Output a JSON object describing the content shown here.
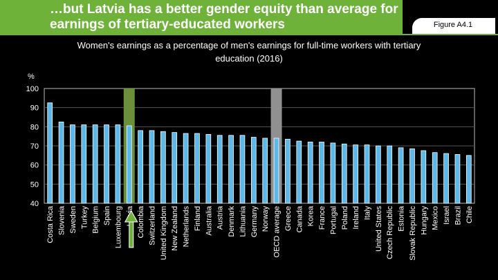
{
  "header": {
    "title": "…but Latvia has a better gender equity than average for earnings of tertiary-educated workers",
    "figure_label": "Figure A4.1"
  },
  "colors": {
    "banner": "#6fb23a",
    "bar": "#5bb8e8",
    "highlight_latvia": "#6b8f3a",
    "highlight_oecd": "#909090",
    "arrow": "#6fb23a"
  },
  "chart_data": {
    "type": "bar",
    "title": "Women's earnings as a percentage of men's earnings for full-time workers with tertiary education (2016)",
    "ylabel": "%",
    "ylim": [
      40,
      100
    ],
    "yticks": [
      40,
      50,
      60,
      70,
      80,
      90,
      100
    ],
    "grid": true,
    "categories": [
      "Costa Rica",
      "Slovenia",
      "Sweden",
      "Turkey",
      "Belgium",
      "Spain",
      "Luxembourg",
      "Latvia",
      "Colombia",
      "Switzerland",
      "United Kingdom",
      "New Zealand",
      "Netherlands",
      "Finland",
      "Australia",
      "Austria",
      "Denmark",
      "Lithuania",
      "Germany",
      "Norway",
      "OECD average",
      "Greece",
      "Canada",
      "Korea",
      "France",
      "Portugal",
      "Poland",
      "Ireland",
      "Italy",
      "United States",
      "Czech Republic",
      "Estonia",
      "Slovak Republic",
      "Hungary",
      "Mexico",
      "Israel",
      "Brazil",
      "Chile"
    ],
    "values": [
      92.5,
      82.5,
      81,
      81,
      81,
      81,
      81,
      80.5,
      78,
      78,
      77.5,
      77,
      76.5,
      76.5,
      76,
      75.5,
      75.5,
      75.5,
      74.5,
      74,
      74,
      73.5,
      72.5,
      72,
      72,
      71.5,
      71,
      70.5,
      70.5,
      70,
      70,
      69,
      68.5,
      67.5,
      66.5,
      66,
      65.5,
      65
    ],
    "highlighted": [
      "Latvia",
      "OECD average"
    ]
  }
}
